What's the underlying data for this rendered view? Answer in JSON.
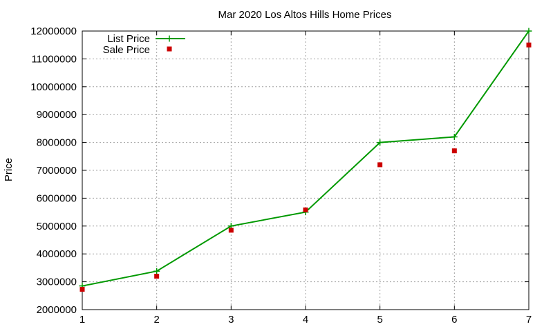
{
  "chart_data": {
    "type": "line",
    "title": "Mar 2020 Los Altos Hills Home Prices",
    "xlabel": "",
    "ylabel": "Price",
    "x": [
      1,
      2,
      3,
      4,
      5,
      6,
      7
    ],
    "xlim": [
      1,
      7
    ],
    "ylim": [
      2000000,
      12000000
    ],
    "xticks": [
      1,
      2,
      3,
      4,
      5,
      6,
      7
    ],
    "yticks": [
      2000000,
      3000000,
      4000000,
      5000000,
      6000000,
      7000000,
      8000000,
      9000000,
      10000000,
      11000000,
      12000000
    ],
    "grid": true,
    "legend_position": "top-left",
    "series": [
      {
        "name": "List Price",
        "style": "line-with-plus-markers",
        "color": "#009900",
        "values": [
          2850000,
          3380000,
          5000000,
          5500000,
          8000000,
          8200000,
          12000000
        ]
      },
      {
        "name": "Sale Price",
        "style": "square-markers",
        "color": "#cc0000",
        "values": [
          2730000,
          3200000,
          4850000,
          5580000,
          7200000,
          7700000,
          11500000
        ]
      }
    ]
  }
}
